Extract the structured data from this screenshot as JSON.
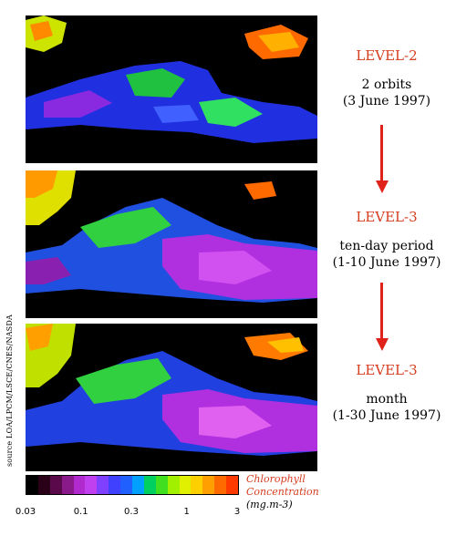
{
  "levels": [
    {
      "title": "LEVEL-2",
      "line1": "2 orbits",
      "line2": "(3 June 1997)"
    },
    {
      "title": "LEVEL-3",
      "line1": "ten-day period",
      "line2": "(1-10 June 1997)"
    },
    {
      "title": "LEVEL-3",
      "line1": "month",
      "line2": "(1-30 June 1997)"
    }
  ],
  "colorbar": {
    "title_line1": "Chlorophyll",
    "title_line2": "Concentration",
    "units": "(mg.m-3)",
    "ticks": [
      "0.03",
      "0.1",
      "0.3",
      "1",
      "3"
    ],
    "colors": [
      "#000000",
      "#2a0018",
      "#5a0a4a",
      "#8a1a8a",
      "#b02ad0",
      "#c040f0",
      "#8040ff",
      "#4040ff",
      "#2060ff",
      "#00a0ff",
      "#00d060",
      "#40e020",
      "#a0f000",
      "#e0f000",
      "#ffd000",
      "#ffa000",
      "#ff6a00",
      "#ff3a00"
    ]
  },
  "source_text": "source LOA/LPCM/LSCE/CNES/NASDA",
  "colors": {
    "accent_red": "#d63c1e",
    "arrow_red": "#e0231a"
  }
}
